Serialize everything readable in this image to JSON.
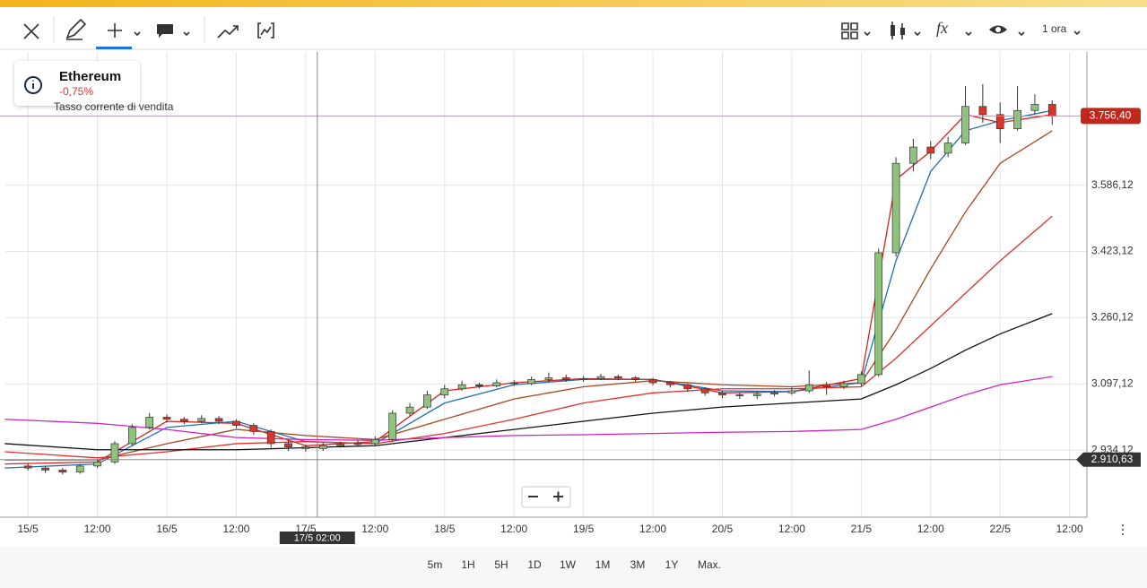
{
  "toolbar": {
    "interval": "1 ora"
  },
  "info": {
    "name": "Ethereum",
    "change": "-0,75%",
    "note": "Tasso corrente di vendita"
  },
  "chart_data": {
    "type": "candlestick",
    "xlim": [
      -3.9,
      183
    ],
    "ylim": [
      2769,
      3914
    ],
    "xticks": [
      {
        "value": 0,
        "label": "15/5"
      },
      {
        "value": 12,
        "label": "12:00"
      },
      {
        "value": 24,
        "label": "16/5"
      },
      {
        "value": 36,
        "label": "12:00"
      },
      {
        "value": 48,
        "label": "17/5"
      },
      {
        "value": 60,
        "label": "12:00"
      },
      {
        "value": 72,
        "label": "18/5"
      },
      {
        "value": 84,
        "label": "12:00"
      },
      {
        "value": 96,
        "label": "19/5"
      },
      {
        "value": 108,
        "label": "12:00"
      },
      {
        "value": 120,
        "label": "20/5"
      },
      {
        "value": 132,
        "label": "12:00"
      },
      {
        "value": 144,
        "label": "21/5"
      },
      {
        "value": 156,
        "label": "12:00"
      },
      {
        "value": 168,
        "label": "22/5"
      },
      {
        "value": 180,
        "label": "12:00"
      }
    ],
    "yticks": [
      {
        "value": 2934.12,
        "label": "2.934,12"
      },
      {
        "value": 3097.12,
        "label": "3.097,12"
      },
      {
        "value": 3260.12,
        "label": "3.260,12"
      },
      {
        "value": 3423.12,
        "label": "3.423,12"
      },
      {
        "value": 3586.12,
        "label": "3.586,12"
      }
    ],
    "grid": true,
    "up_color": "#8fc27c",
    "down_color": "#d9362b",
    "current_price": {
      "value": 3756.4,
      "label": "3.756,40"
    },
    "crosshair_y": {
      "value": 2910.63,
      "label": "2.910,63"
    },
    "crosshair_x": {
      "value": 50,
      "label": "17/5 02:00"
    },
    "candles": {
      "x": [
        0,
        3,
        6,
        9,
        12,
        15,
        18,
        21,
        24,
        27,
        30,
        33,
        36,
        39,
        42,
        45,
        48,
        51,
        54,
        57,
        60,
        63,
        66,
        69,
        72,
        75,
        78,
        81,
        84,
        87,
        90,
        93,
        96,
        99,
        102,
        105,
        108,
        111,
        114,
        117,
        120,
        123,
        126,
        129,
        132,
        135,
        138,
        141,
        144,
        147,
        150,
        153,
        156,
        159,
        162,
        165,
        168,
        171,
        174,
        177
      ],
      "open": [
        2895,
        2890,
        2885,
        2880,
        2895,
        2905,
        2950,
        2990,
        3015,
        3010,
        3005,
        3012,
        3005,
        2995,
        2980,
        2950,
        2942,
        2938,
        2945,
        2948,
        2950,
        2960,
        3025,
        3040,
        3070,
        3085,
        3095,
        3092,
        3100,
        3098,
        3108,
        3112,
        3108,
        3110,
        3115,
        3112,
        3108,
        3100,
        3095,
        3085,
        3075,
        3070,
        3068,
        3072,
        3075,
        3080,
        3095,
        3090,
        3098,
        3120,
        3420,
        3640,
        3680,
        3665,
        3690,
        3780,
        3760,
        3725,
        3770,
        3785
      ],
      "high": [
        2902,
        2896,
        2890,
        2900,
        2912,
        2956,
        2998,
        3025,
        3022,
        3016,
        3020,
        3018,
        3010,
        3000,
        2985,
        2958,
        2948,
        2952,
        2955,
        2958,
        2968,
        3032,
        3050,
        3080,
        3095,
        3105,
        3100,
        3108,
        3106,
        3115,
        3125,
        3120,
        3116,
        3122,
        3120,
        3116,
        3112,
        3104,
        3098,
        3088,
        3080,
        3076,
        3078,
        3082,
        3088,
        3130,
        3102,
        3105,
        3128,
        3430,
        3655,
        3700,
        3695,
        3705,
        3830,
        3835,
        3790,
        3830,
        3810,
        3795
      ],
      "low": [
        2884,
        2878,
        2874,
        2876,
        2890,
        2900,
        2945,
        2985,
        3002,
        2998,
        3000,
        2998,
        2988,
        2972,
        2940,
        2932,
        2930,
        2932,
        2940,
        2942,
        2944,
        2955,
        3018,
        3035,
        3062,
        3080,
        3086,
        3088,
        3092,
        3094,
        3102,
        3102,
        3102,
        3106,
        3106,
        3102,
        3094,
        3088,
        3078,
        3068,
        3062,
        3060,
        3060,
        3066,
        3070,
        3075,
        3070,
        3084,
        3092,
        3115,
        3410,
        3620,
        3650,
        3655,
        3685,
        3740,
        3690,
        3720,
        3760,
        3735
      ],
      "close": [
        2890,
        2885,
        2880,
        2895,
        2905,
        2950,
        2990,
        3015,
        3010,
        3005,
        3012,
        3005,
        2995,
        2980,
        2950,
        2942,
        2938,
        2945,
        2948,
        2950,
        2960,
        3025,
        3040,
        3070,
        3085,
        3095,
        3092,
        3100,
        3098,
        3108,
        3112,
        3108,
        3110,
        3115,
        3112,
        3108,
        3100,
        3095,
        3085,
        3075,
        3070,
        3068,
        3072,
        3075,
        3080,
        3095,
        3090,
        3098,
        3120,
        3420,
        3640,
        3680,
        3665,
        3690,
        3780,
        3760,
        3725,
        3770,
        3785,
        3756
      ]
    },
    "line_x": [
      -4,
      12,
      24,
      36,
      48,
      60,
      72,
      84,
      96,
      108,
      120,
      132,
      144,
      150,
      156,
      162,
      168,
      177
    ],
    "lines": [
      {
        "color": "#e0201c",
        "values": [
          2900,
          2905,
          3005,
          3000,
          2945,
          2955,
          3080,
          3100,
          3110,
          3108,
          3075,
          3078,
          3110,
          3600,
          3670,
          3760,
          3740,
          3760
        ]
      },
      {
        "color": "#1f6fb4",
        "values": [
          2890,
          2900,
          2990,
          3005,
          2955,
          2950,
          3050,
          3095,
          3108,
          3108,
          3080,
          3078,
          3100,
          3400,
          3620,
          3720,
          3745,
          3770
        ]
      },
      {
        "color": "#a8461c",
        "values": [
          2910,
          2910,
          2950,
          2985,
          2970,
          2960,
          3010,
          3060,
          3090,
          3105,
          3095,
          3090,
          3100,
          3230,
          3380,
          3520,
          3640,
          3720
        ]
      },
      {
        "color": "#e3302a",
        "values": [
          2930,
          2915,
          2930,
          2950,
          2955,
          2950,
          2975,
          3010,
          3050,
          3075,
          3085,
          3085,
          3090,
          3160,
          3240,
          3320,
          3400,
          3510
        ]
      },
      {
        "color": "#111111",
        "values": [
          2950,
          2935,
          2935,
          2935,
          2940,
          2945,
          2965,
          2985,
          3005,
          3025,
          3040,
          3050,
          3060,
          3095,
          3135,
          3180,
          3220,
          3270
        ]
      },
      {
        "color": "#d421c4",
        "values": [
          3010,
          3000,
          2985,
          2965,
          2960,
          2958,
          2965,
          2970,
          2972,
          2975,
          2978,
          2980,
          2985,
          3010,
          3040,
          3070,
          3095,
          3115
        ]
      }
    ]
  },
  "timeframes": [
    "5m",
    "1H",
    "5H",
    "1D",
    "1W",
    "1M",
    "3M",
    "1Y",
    "Max."
  ]
}
